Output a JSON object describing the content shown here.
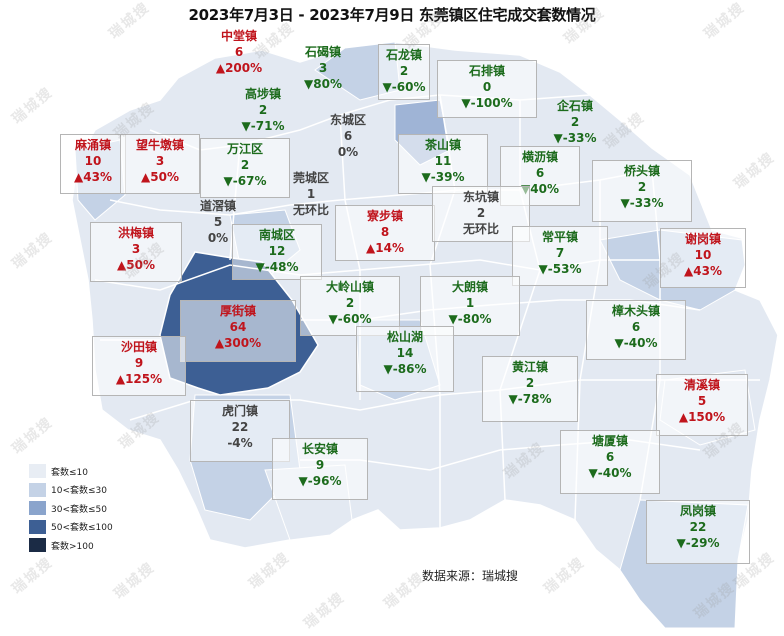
{
  "title": "2023年7月3日 - 2023年7月9日 东莞镇区住宅成交套数情况",
  "source": "数据来源：瑞城搜",
  "watermark": "瑞城搜",
  "legend": [
    {
      "label": "套数≤10",
      "color": "#e8edf4"
    },
    {
      "label": "10<套数≤30",
      "color": "#c4d2e6"
    },
    {
      "label": "30<套数≤50",
      "color": "#8aa4cc"
    },
    {
      "label": "50<套数≤100",
      "color": "#3d5f94"
    },
    {
      "label": "套数>100",
      "color": "#1b2b45"
    }
  ],
  "towns": [
    {
      "name": "中堂镇",
      "count": "6",
      "change": "▲200%",
      "trend": "up"
    },
    {
      "name": "石碣镇",
      "count": "3",
      "change": "▼80%",
      "trend": "down"
    },
    {
      "name": "石龙镇",
      "count": "2",
      "change": "▼-60%",
      "trend": "down"
    },
    {
      "name": "石排镇",
      "count": "0",
      "change": "▼-100%",
      "trend": "down"
    },
    {
      "name": "高埗镇",
      "count": "2",
      "change": "▼-71%",
      "trend": "down"
    },
    {
      "name": "企石镇",
      "count": "2",
      "change": "▼-33%",
      "trend": "down"
    },
    {
      "name": "麻涌镇",
      "count": "10",
      "change": "▲43%",
      "trend": "up"
    },
    {
      "name": "望牛墩镇",
      "count": "3",
      "change": "▲50%",
      "trend": "up"
    },
    {
      "name": "万江区",
      "count": "2",
      "change": "▼-67%",
      "trend": "down"
    },
    {
      "name": "东城区",
      "count": "6",
      "change": "0%",
      "trend": "flat"
    },
    {
      "name": "茶山镇",
      "count": "11",
      "change": "▼-39%",
      "trend": "down"
    },
    {
      "name": "横沥镇",
      "count": "6",
      "change": "▼40%",
      "trend": "down"
    },
    {
      "name": "桥头镇",
      "count": "2",
      "change": "▼-33%",
      "trend": "down"
    },
    {
      "name": "莞城区",
      "count": "1",
      "change": "无环比",
      "trend": "flat"
    },
    {
      "name": "道滘镇",
      "count": "5",
      "change": "0%",
      "trend": "flat"
    },
    {
      "name": "寮步镇",
      "count": "8",
      "change": "▲14%",
      "trend": "up"
    },
    {
      "name": "东坑镇",
      "count": "2",
      "change": "无环比",
      "trend": "flat"
    },
    {
      "name": "洪梅镇",
      "count": "3",
      "change": "▲50%",
      "trend": "up"
    },
    {
      "name": "南城区",
      "count": "12",
      "change": "▼-48%",
      "trend": "down"
    },
    {
      "name": "常平镇",
      "count": "7",
      "change": "▼-53%",
      "trend": "down"
    },
    {
      "name": "谢岗镇",
      "count": "10",
      "change": "▲43%",
      "trend": "up"
    },
    {
      "name": "大岭山镇",
      "count": "2",
      "change": "▼-60%",
      "trend": "down"
    },
    {
      "name": "大朗镇",
      "count": "1",
      "change": "▼-80%",
      "trend": "down"
    },
    {
      "name": "厚街镇",
      "count": "64",
      "change": "▲300%",
      "trend": "up"
    },
    {
      "name": "樟木头镇",
      "count": "6",
      "change": "▼-40%",
      "trend": "down"
    },
    {
      "name": "沙田镇",
      "count": "9",
      "change": "▲125%",
      "trend": "up"
    },
    {
      "name": "松山湖",
      "count": "14",
      "change": "▼-86%",
      "trend": "down"
    },
    {
      "name": "黄江镇",
      "count": "2",
      "change": "▼-78%",
      "trend": "down"
    },
    {
      "name": "清溪镇",
      "count": "5",
      "change": "▲150%",
      "trend": "up"
    },
    {
      "name": "虎门镇",
      "count": "22",
      "change": "-4%",
      "trend": "flat"
    },
    {
      "name": "长安镇",
      "count": "9",
      "change": "▼-96%",
      "trend": "down"
    },
    {
      "name": "塘厦镇",
      "count": "6",
      "change": "▼-40%",
      "trend": "down"
    },
    {
      "name": "凤岗镇",
      "count": "22",
      "change": "▼-29%",
      "trend": "down"
    }
  ]
}
